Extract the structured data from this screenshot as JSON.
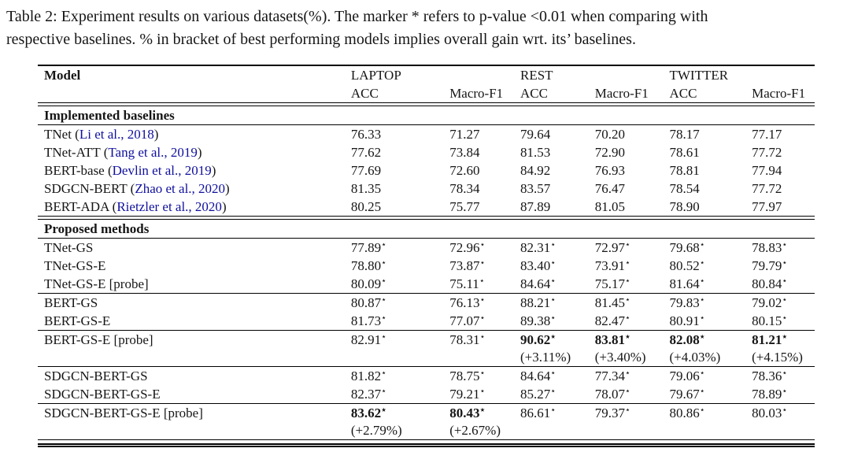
{
  "caption": {
    "lines": [
      "Table 2: Experiment results on various datasets(%). The marker * refers to p-value <0.01 when comparing with",
      "respective baselines. % in bracket of best performing models implies overall gain wrt. its’ baselines."
    ]
  },
  "colors": {
    "citation_link": "#10109e",
    "text": "#161616",
    "rule": "#000000"
  },
  "symbols": {
    "star": "⋆",
    "cite_open": "(",
    "cite_close": ")"
  },
  "table": {
    "model_header": "Model",
    "group_headers": [
      "LAPTOP",
      "REST",
      "TWITTER"
    ],
    "metric_headers": [
      "ACC",
      "Macro-F1",
      "ACC",
      "Macro-F1",
      "ACC",
      "Macro-F1"
    ],
    "sections": [
      {
        "title": "Implemented baselines",
        "groups": [
          [
            {
              "m": "TNet",
              "c": "Li et al., 2018",
              "cells": [
                {
                  "v": "76.33"
                },
                {
                  "v": "71.27"
                },
                {
                  "v": "79.64"
                },
                {
                  "v": "70.20"
                },
                {
                  "v": "78.17"
                },
                {
                  "v": "77.17"
                }
              ]
            },
            {
              "m": "TNet-ATT",
              "c": "Tang et al., 2019",
              "cells": [
                {
                  "v": "77.62"
                },
                {
                  "v": "73.84"
                },
                {
                  "v": "81.53"
                },
                {
                  "v": "72.90"
                },
                {
                  "v": "78.61"
                },
                {
                  "v": "77.72"
                }
              ]
            },
            {
              "m": "BERT-base",
              "c": "Devlin et al., 2019",
              "cells": [
                {
                  "v": "77.69"
                },
                {
                  "v": "72.60"
                },
                {
                  "v": "84.92"
                },
                {
                  "v": "76.93"
                },
                {
                  "v": "78.81"
                },
                {
                  "v": "77.94"
                }
              ]
            },
            {
              "m": "SDGCN-BERT",
              "c": "Zhao et al., 2020",
              "cells": [
                {
                  "v": "81.35"
                },
                {
                  "v": "78.34"
                },
                {
                  "v": "83.57"
                },
                {
                  "v": "76.47"
                },
                {
                  "v": "78.54"
                },
                {
                  "v": "77.72"
                }
              ]
            },
            {
              "m": "BERT-ADA",
              "c": "Rietzler et al., 2020",
              "cells": [
                {
                  "v": "80.25"
                },
                {
                  "v": "75.77"
                },
                {
                  "v": "87.89"
                },
                {
                  "v": "81.05"
                },
                {
                  "v": "78.90"
                },
                {
                  "v": "77.97"
                }
              ]
            }
          ]
        ]
      },
      {
        "title": "Proposed methods",
        "groups": [
          [
            {
              "m": "TNet-GS",
              "cells": [
                {
                  "v": "77.89",
                  "s": 1
                },
                {
                  "v": "72.96",
                  "s": 1
                },
                {
                  "v": "82.31",
                  "s": 1
                },
                {
                  "v": "72.97",
                  "s": 1
                },
                {
                  "v": "79.68",
                  "s": 1
                },
                {
                  "v": "78.83",
                  "s": 1
                }
              ]
            },
            {
              "m": "TNet-GS-E",
              "cells": [
                {
                  "v": "78.80",
                  "s": 1
                },
                {
                  "v": "73.87",
                  "s": 1
                },
                {
                  "v": "83.40",
                  "s": 1
                },
                {
                  "v": "73.91",
                  "s": 1
                },
                {
                  "v": "80.52",
                  "s": 1
                },
                {
                  "v": "79.79",
                  "s": 1
                }
              ]
            },
            {
              "m": "TNet-GS-E [probe]",
              "cells": [
                {
                  "v": "80.09",
                  "s": 1
                },
                {
                  "v": "75.11",
                  "s": 1
                },
                {
                  "v": "84.64",
                  "s": 1
                },
                {
                  "v": "75.17",
                  "s": 1
                },
                {
                  "v": "81.64",
                  "s": 1
                },
                {
                  "v": "80.84",
                  "s": 1
                }
              ]
            }
          ],
          [
            {
              "m": "BERT-GS",
              "cells": [
                {
                  "v": "80.87",
                  "s": 1
                },
                {
                  "v": "76.13",
                  "s": 1
                },
                {
                  "v": "88.21",
                  "s": 1
                },
                {
                  "v": "81.45",
                  "s": 1
                },
                {
                  "v": "79.83",
                  "s": 1
                },
                {
                  "v": "79.02",
                  "s": 1
                }
              ]
            },
            {
              "m": "BERT-GS-E",
              "cells": [
                {
                  "v": "81.73",
                  "s": 1
                },
                {
                  "v": "77.07",
                  "s": 1
                },
                {
                  "v": "89.38",
                  "s": 1
                },
                {
                  "v": "82.47",
                  "s": 1
                },
                {
                  "v": "80.91",
                  "s": 1
                },
                {
                  "v": "80.15",
                  "s": 1
                }
              ]
            }
          ],
          [
            {
              "m": "BERT-GS-E [probe]",
              "cells": [
                {
                  "v": "82.91",
                  "s": 1
                },
                {
                  "v": "78.31",
                  "s": 1
                },
                {
                  "v": "90.62",
                  "s": 1,
                  "b": 1,
                  "g": "(+3.11%)"
                },
                {
                  "v": "83.81",
                  "s": 1,
                  "b": 1,
                  "g": "(+3.40%)"
                },
                {
                  "v": "82.08",
                  "s": 1,
                  "b": 1,
                  "g": "(+4.03%)"
                },
                {
                  "v": "81.21",
                  "s": 1,
                  "b": 1,
                  "g": "(+4.15%)"
                }
              ]
            }
          ],
          [
            {
              "m": "SDGCN-BERT-GS",
              "cells": [
                {
                  "v": "81.82",
                  "s": 1
                },
                {
                  "v": "78.75",
                  "s": 1
                },
                {
                  "v": "84.64",
                  "s": 1
                },
                {
                  "v": "77.34",
                  "s": 1
                },
                {
                  "v": "79.06",
                  "s": 1
                },
                {
                  "v": "78.36",
                  "s": 1
                }
              ]
            },
            {
              "m": "SDGCN-BERT-GS-E",
              "cells": [
                {
                  "v": "82.37",
                  "s": 1
                },
                {
                  "v": "79.21",
                  "s": 1
                },
                {
                  "v": "85.27",
                  "s": 1
                },
                {
                  "v": "78.07",
                  "s": 1
                },
                {
                  "v": "79.67",
                  "s": 1
                },
                {
                  "v": "78.89",
                  "s": 1
                }
              ]
            }
          ],
          [
            {
              "m": "SDGCN-BERT-GS-E [probe]",
              "cells": [
                {
                  "v": "83.62",
                  "s": 1,
                  "b": 1,
                  "g": "(+2.79%)"
                },
                {
                  "v": "80.43",
                  "s": 1,
                  "b": 1,
                  "g": "(+2.67%)"
                },
                {
                  "v": "86.61",
                  "s": 1
                },
                {
                  "v": "79.37",
                  "s": 1
                },
                {
                  "v": "80.86",
                  "s": 1
                },
                {
                  "v": "80.03",
                  "s": 1
                }
              ]
            }
          ]
        ]
      }
    ]
  }
}
